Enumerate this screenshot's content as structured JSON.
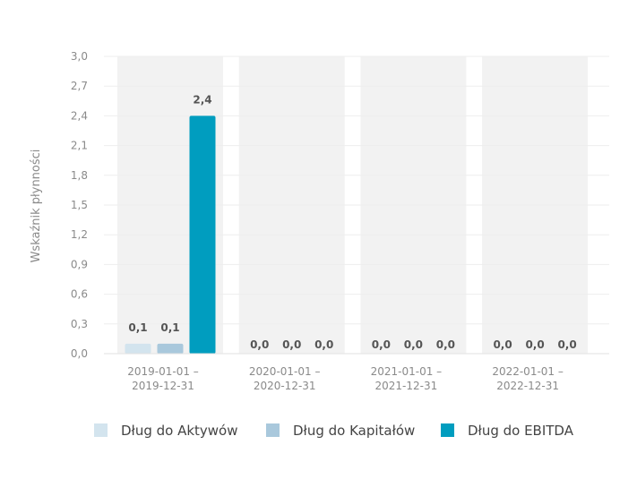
{
  "chart_data": {
    "type": "bar",
    "ylabel": "Wskaźnik płynności",
    "ylim": [
      0,
      3.0
    ],
    "yticks": [
      "0,0",
      "0,3",
      "0,6",
      "0,9",
      "1,2",
      "1,5",
      "1,8",
      "2,1",
      "2,4",
      "2,7",
      "3,0"
    ],
    "categories": [
      [
        "2019-01-01 –",
        "2019-12-31"
      ],
      [
        "2020-01-01 –",
        "2020-12-31"
      ],
      [
        "2021-01-01 –",
        "2021-12-31"
      ],
      [
        "2022-01-01 –",
        "2022-12-31"
      ]
    ],
    "series": [
      {
        "name": "Dług do Aktywów",
        "color": "#d3e4ee",
        "values": [
          0.1,
          0.0,
          0.0,
          0.0
        ],
        "labels": [
          "0,1",
          "0,0",
          "0,0",
          "0,0"
        ]
      },
      {
        "name": "Dług do Kapitałów",
        "color": "#a9c8dc",
        "values": [
          0.1,
          0.0,
          0.0,
          0.0
        ],
        "labels": [
          "0,1",
          "0,0",
          "0,0",
          "0,0"
        ]
      },
      {
        "name": "Dług do EBITDA",
        "color": "#009dbf",
        "values": [
          2.4,
          0.0,
          0.0,
          0.0
        ],
        "labels": [
          "2,4",
          "0,0",
          "0,0",
          "0,0"
        ]
      }
    ],
    "grid": true,
    "legend_position": "bottom"
  }
}
